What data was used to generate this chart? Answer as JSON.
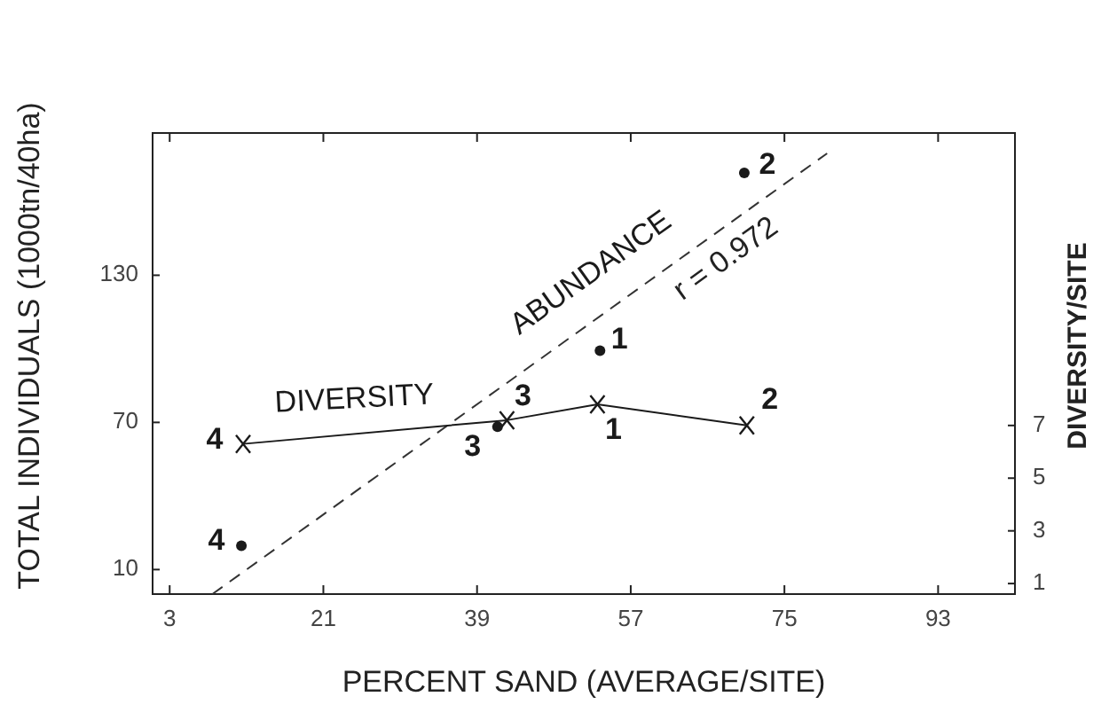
{
  "chart_data": {
    "type": "scatter",
    "xlabel": "PERCENT SAND (AVERAGE/SITE)",
    "ylabel": "TOTAL INDIVIDUALS (1000tn/40ha)",
    "y2label": "DIVERSITY/SITE",
    "xlim": [
      1,
      102
    ],
    "xticks": [
      3,
      21,
      39,
      57,
      75,
      93
    ],
    "ylim": [
      0,
      188
    ],
    "yticks": [
      10,
      70,
      130
    ],
    "y2lim": [
      0.6,
      18.1
    ],
    "y2ticks": [
      1,
      3,
      5,
      7
    ],
    "series": [
      {
        "name": "ABUNDANCE",
        "marker": "circle",
        "color": "#1a1a1a",
        "x": [
          11.4,
          41.4,
          53.4,
          70.3
        ],
        "values": [
          19.7,
          68.2,
          99.2,
          171.7
        ]
      },
      {
        "type": "line",
        "line_style": "dashed",
        "marker": "none",
        "color": "#333333",
        "x": [
          8,
          80
        ],
        "values": [
          0,
          179.7
        ]
      },
      {
        "name": "DIVERSITY",
        "type": "line",
        "axis": "y2",
        "marker": "cross",
        "line_style": "solid",
        "color": "#1a1a1a",
        "x": [
          11.6,
          42.5,
          53.1,
          70.6
        ],
        "values": [
          6.3,
          7.2,
          7.8,
          7.0
        ]
      }
    ],
    "annotations": [
      "r = 0.972",
      {
        "text": "4",
        "x": 11.4,
        "y": 19.7
      },
      {
        "text": "3",
        "x": 41.4,
        "y": 68.2
      },
      {
        "text": "1",
        "x": 53.4,
        "y": 99.2
      },
      {
        "text": "2",
        "x": 70.3,
        "y": 171.7
      },
      "4",
      "3",
      "1",
      "2"
    ]
  }
}
